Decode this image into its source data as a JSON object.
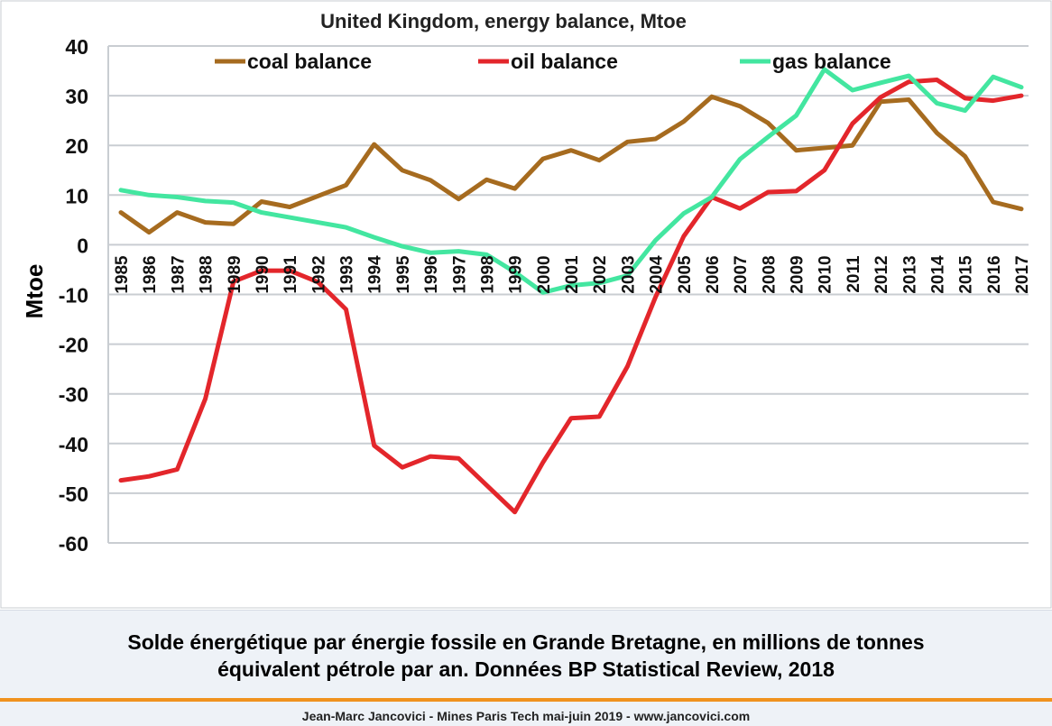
{
  "chart_data": {
    "type": "line",
    "title": "United Kingdom, energy balance, Mtoe",
    "ylabel": "Mtoe",
    "xlabel": "",
    "ylim": [
      -60,
      40
    ],
    "yticks": [
      40,
      30,
      20,
      10,
      0,
      -10,
      -20,
      -30,
      -40,
      -50,
      -60
    ],
    "grid": true,
    "legend_position": "top",
    "categories": [
      "1985",
      "1986",
      "1987",
      "1988",
      "1989",
      "1990",
      "1991",
      "1992",
      "1993",
      "1994",
      "1995",
      "1996",
      "1997",
      "1998",
      "1999",
      "2000",
      "2001",
      "2002",
      "2003",
      "2004",
      "2005",
      "2006",
      "2007",
      "2008",
      "2009",
      "2010",
      "2011",
      "2012",
      "2013",
      "2014",
      "2015",
      "2016",
      "2017"
    ],
    "series": [
      {
        "name": "coal balance",
        "color": "#a66b1f",
        "values": [
          6.5,
          2.5,
          6.5,
          4.5,
          4.2,
          8.7,
          7.6,
          9.8,
          12,
          20.2,
          15,
          13,
          9.2,
          13.1,
          11.3,
          17.3,
          19,
          17,
          20.7,
          21.3,
          24.8,
          29.8,
          27.9,
          24.5,
          19,
          19.5,
          20,
          28.8,
          29.2,
          22.5,
          17.8,
          8.6,
          7.2
        ]
      },
      {
        "name": "oil balance",
        "color": "#e3262b",
        "values": [
          -47.4,
          -46.6,
          -45.2,
          -31,
          -7.4,
          -5.2,
          -5.2,
          -7.5,
          -13,
          -40.4,
          -44.8,
          -42.6,
          -43,
          -48.4,
          -53.8,
          -43.8,
          -34.9,
          -34.6,
          -24.5,
          -10.5,
          1.7,
          9.6,
          7.3,
          10.6,
          10.8,
          15,
          24.4,
          29.7,
          32.8,
          33.2,
          29.5,
          29,
          30
        ]
      },
      {
        "name": "gas balance",
        "color": "#43e6a0",
        "values": [
          11,
          10,
          9.6,
          8.8,
          8.5,
          6.5,
          5.5,
          4.5,
          3.5,
          1.5,
          -0.3,
          -1.6,
          -1.3,
          -2,
          -5.5,
          -9.6,
          -8.2,
          -7.7,
          -6.2,
          0.9,
          6.3,
          9.6,
          17.2,
          21.7,
          26,
          35.3,
          31.1,
          32.6,
          34,
          28.5,
          27,
          33.8,
          31.7
        ]
      }
    ]
  },
  "caption": {
    "line1": "Solde énergétique par énergie fossile en Grande Bretagne, en millions de tonnes",
    "line2": "équivalent pétrole par an. Données BP Statistical Review, 2018"
  },
  "footer": {
    "text": "Jean-Marc Jancovici - Mines Paris Tech mai-juin 2019 - www.jancovici.com"
  }
}
